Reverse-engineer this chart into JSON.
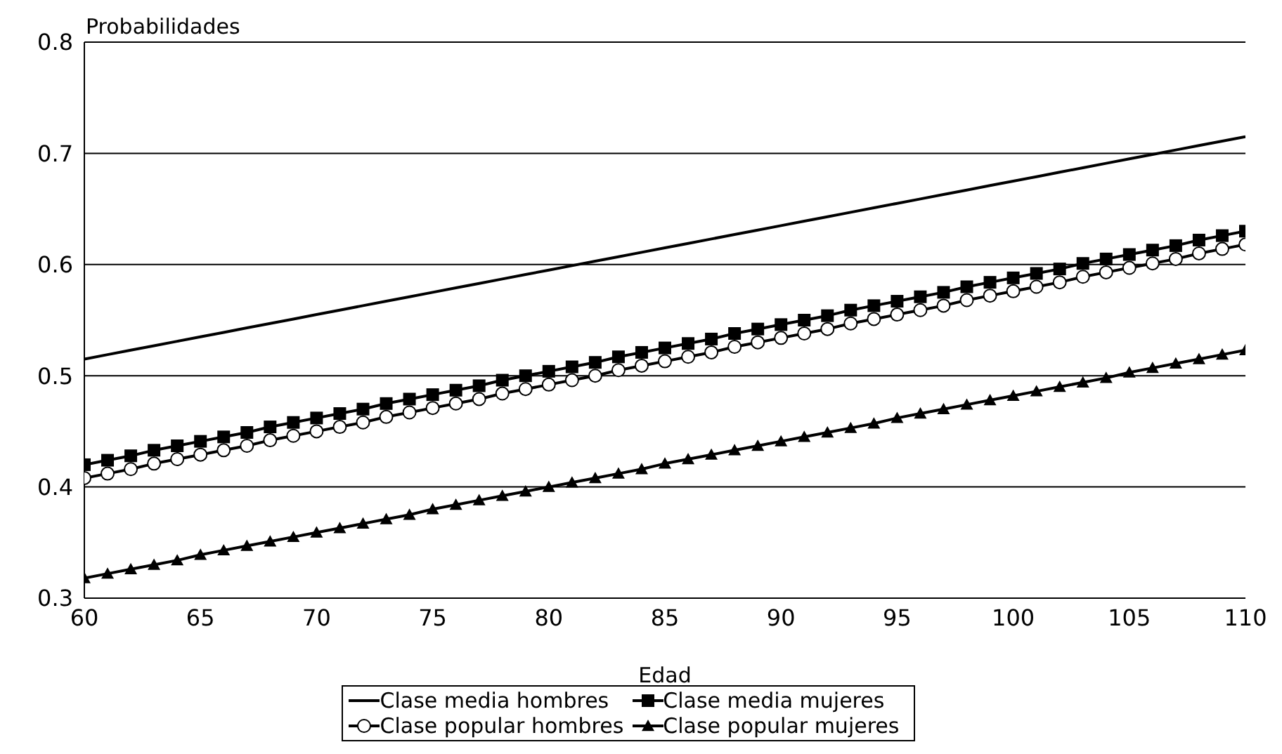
{
  "chart_data": {
    "type": "line",
    "xlabel": "Edad",
    "ylabel": "Probabilidades",
    "x": [
      60,
      61,
      62,
      63,
      64,
      65,
      66,
      67,
      68,
      69,
      70,
      71,
      72,
      73,
      74,
      75,
      76,
      77,
      78,
      79,
      80,
      81,
      82,
      83,
      84,
      85,
      86,
      87,
      88,
      89,
      90,
      91,
      92,
      93,
      94,
      95,
      96,
      97,
      98,
      99,
      100,
      101,
      102,
      103,
      104,
      105,
      106,
      107,
      108,
      109,
      110
    ],
    "series": [
      {
        "name": "Clase media hombres",
        "color": "#000000",
        "marker": "none",
        "values": [
          0.515,
          0.519,
          0.523,
          0.527,
          0.531,
          0.535,
          0.539,
          0.543,
          0.547,
          0.551,
          0.555,
          0.559,
          0.563,
          0.567,
          0.571,
          0.575,
          0.579,
          0.583,
          0.587,
          0.591,
          0.595,
          0.599,
          0.603,
          0.607,
          0.611,
          0.615,
          0.619,
          0.623,
          0.627,
          0.631,
          0.635,
          0.639,
          0.643,
          0.647,
          0.651,
          0.655,
          0.659,
          0.663,
          0.667,
          0.671,
          0.675,
          0.679,
          0.683,
          0.687,
          0.691,
          0.695,
          0.699,
          0.703,
          0.707,
          0.711,
          0.715
        ]
      },
      {
        "name": "Clase media mujeres",
        "color": "#000000",
        "marker": "square",
        "values": [
          0.42,
          0.424,
          0.428,
          0.433,
          0.437,
          0.441,
          0.445,
          0.449,
          0.454,
          0.458,
          0.462,
          0.466,
          0.47,
          0.475,
          0.479,
          0.483,
          0.487,
          0.491,
          0.496,
          0.5,
          0.504,
          0.508,
          0.512,
          0.517,
          0.521,
          0.525,
          0.529,
          0.533,
          0.538,
          0.542,
          0.546,
          0.55,
          0.554,
          0.559,
          0.563,
          0.567,
          0.571,
          0.575,
          0.58,
          0.584,
          0.588,
          0.592,
          0.596,
          0.601,
          0.605,
          0.609,
          0.613,
          0.617,
          0.622,
          0.626,
          0.63
        ]
      },
      {
        "name": "Clase popular hombres",
        "color": "#000000",
        "marker": "circle",
        "values": [
          0.408,
          0.412,
          0.416,
          0.421,
          0.425,
          0.429,
          0.433,
          0.437,
          0.442,
          0.446,
          0.45,
          0.454,
          0.458,
          0.463,
          0.467,
          0.471,
          0.475,
          0.479,
          0.484,
          0.488,
          0.492,
          0.496,
          0.5,
          0.505,
          0.509,
          0.513,
          0.517,
          0.521,
          0.526,
          0.53,
          0.534,
          0.538,
          0.542,
          0.547,
          0.551,
          0.555,
          0.559,
          0.563,
          0.568,
          0.572,
          0.576,
          0.58,
          0.584,
          0.589,
          0.593,
          0.597,
          0.601,
          0.605,
          0.61,
          0.614,
          0.618
        ]
      },
      {
        "name": "Clase popular mujeres",
        "color": "#000000",
        "marker": "triangle",
        "values": [
          0.318,
          0.322,
          0.326,
          0.33,
          0.334,
          0.339,
          0.343,
          0.347,
          0.351,
          0.355,
          0.359,
          0.363,
          0.367,
          0.371,
          0.375,
          0.38,
          0.384,
          0.388,
          0.392,
          0.396,
          0.4,
          0.404,
          0.408,
          0.412,
          0.416,
          0.421,
          0.425,
          0.429,
          0.433,
          0.437,
          0.441,
          0.445,
          0.449,
          0.453,
          0.457,
          0.462,
          0.466,
          0.47,
          0.474,
          0.478,
          0.482,
          0.486,
          0.49,
          0.494,
          0.498,
          0.503,
          0.507,
          0.511,
          0.515,
          0.519,
          0.523
        ]
      }
    ],
    "xlim": [
      60,
      110
    ],
    "xticks": [
      60,
      65,
      70,
      75,
      80,
      85,
      90,
      95,
      100,
      105,
      110
    ],
    "ylim": [
      0.3,
      0.8
    ],
    "yticks": [
      0.3,
      0.4,
      0.5,
      0.6,
      0.7,
      0.8
    ],
    "grid": "y",
    "legend": "bottom"
  }
}
